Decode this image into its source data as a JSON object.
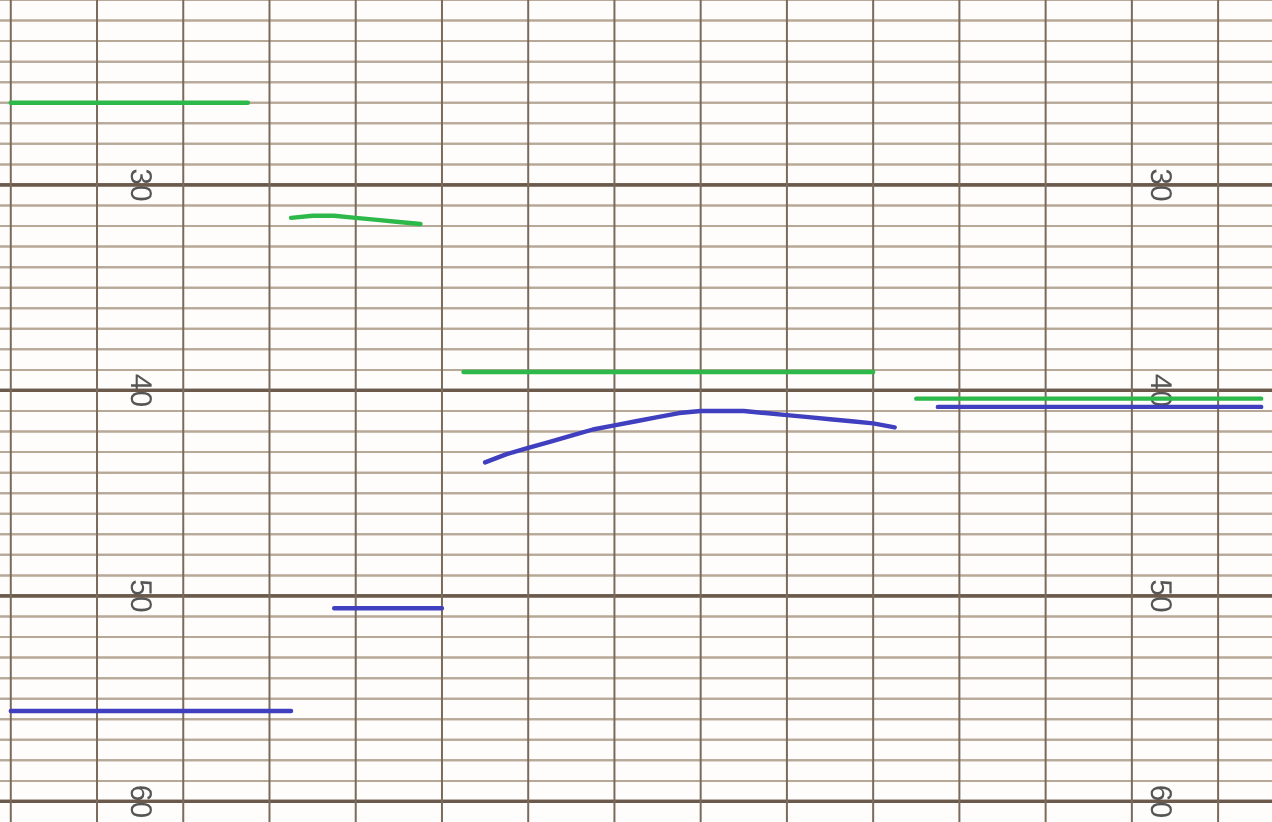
{
  "chart_data": {
    "type": "line",
    "categories": [
      null,
      null,
      null,
      null,
      null,
      null,
      null,
      null,
      null,
      null,
      null,
      null,
      null,
      null,
      null,
      null,
      null,
      null,
      null,
      null,
      null,
      null,
      null,
      null,
      null,
      null,
      null,
      null,
      null,
      null,
      null,
      null,
      null,
      null,
      null,
      null,
      null,
      null,
      null,
      null,
      null,
      null,
      null,
      null,
      null,
      null,
      null,
      null,
      null,
      null,
      null,
      null,
      null,
      null,
      null,
      null,
      null,
      null,
      null
    ],
    "series": [
      {
        "color": "#2db84a",
        "values": [
          26.0,
          26.0,
          26.0,
          26.0,
          26.0,
          26.0,
          26.0,
          26.0,
          26.0,
          26.0,
          26.0,
          26.0,
          null,
          31.6,
          31.5,
          31.5,
          31.6,
          31.7,
          31.8,
          31.9,
          null,
          39.1,
          39.1,
          39.1,
          39.1,
          39.1,
          39.1,
          39.1,
          39.1,
          39.1,
          39.1,
          39.1,
          39.1,
          39.1,
          39.1,
          39.1,
          39.1,
          39.1,
          39.1,
          39.1,
          39.1,
          null,
          40.4,
          40.4,
          40.4,
          40.4,
          40.4,
          40.4,
          40.4,
          40.4,
          40.4,
          40.4,
          40.4,
          40.4,
          40.4,
          40.4,
          40.4,
          40.4,
          40.4
        ]
      },
      {
        "color": "#3f3fbf",
        "values": [
          55.6,
          55.6,
          55.6,
          55.6,
          55.6,
          55.6,
          55.6,
          55.6,
          55.6,
          55.6,
          55.6,
          55.6,
          55.6,
          55.6,
          null,
          50.6,
          50.6,
          50.6,
          50.6,
          50.6,
          50.6,
          null,
          43.5,
          43.1,
          42.8,
          42.5,
          42.2,
          41.9,
          41.7,
          41.5,
          41.3,
          41.1,
          41.0,
          41.0,
          41.0,
          41.1,
          41.2,
          41.3,
          41.4,
          41.5,
          41.6,
          41.8,
          null,
          40.8,
          40.8,
          40.8,
          40.8,
          40.8,
          40.8,
          40.8,
          40.8,
          40.8,
          40.8,
          40.8,
          40.8,
          40.8,
          40.8,
          40.8,
          40.8
        ]
      }
    ],
    "ylim": [
      61,
      21
    ],
    "yticks": [
      {
        "value": 21,
        "label": null
      },
      {
        "value": 22,
        "label": null
      },
      {
        "value": 23,
        "label": null
      },
      {
        "value": 24,
        "label": null
      },
      {
        "value": 25,
        "label": null
      },
      {
        "value": 26,
        "label": null
      },
      {
        "value": 27,
        "label": null
      },
      {
        "value": 28,
        "label": null
      },
      {
        "value": 29,
        "label": null
      },
      30,
      {
        "value": 31,
        "label": null
      },
      {
        "value": 32,
        "label": null
      },
      {
        "value": 33,
        "label": null
      },
      {
        "value": 34,
        "label": null
      },
      {
        "value": 35,
        "label": null
      },
      {
        "value": 36,
        "label": null
      },
      {
        "value": 37,
        "label": null
      },
      {
        "value": 38,
        "label": null
      },
      {
        "value": 39,
        "label": null
      },
      40,
      {
        "value": 41,
        "label": null
      },
      {
        "value": 42,
        "label": null
      },
      {
        "value": 43,
        "label": null
      },
      {
        "value": 44,
        "label": null
      },
      {
        "value": 45,
        "label": null
      },
      {
        "value": 46,
        "label": null
      },
      {
        "value": 47,
        "label": null
      },
      {
        "value": 48,
        "label": null
      },
      {
        "value": 49,
        "label": null
      },
      50,
      {
        "value": 51,
        "label": null
      },
      {
        "value": 52,
        "label": null
      },
      {
        "value": 53,
        "label": null
      },
      {
        "value": 54,
        "label": null
      },
      {
        "value": 55,
        "label": null
      },
      {
        "value": 56,
        "label": null
      },
      {
        "value": 57,
        "label": null
      },
      {
        "value": 58,
        "label": null
      },
      {
        "value": 59,
        "label": null
      },
      60
    ],
    "y2lim": [
      61,
      21
    ],
    "y2ticks": [
      {
        "value": 21,
        "label": null
      },
      {
        "value": 22,
        "label": null
      },
      {
        "value": 23,
        "label": null
      },
      {
        "value": 24,
        "label": null
      },
      {
        "value": 25,
        "label": null
      },
      {
        "value": 26,
        "label": null
      },
      {
        "value": 27,
        "label": null
      },
      {
        "value": 28,
        "label": null
      },
      {
        "value": 29,
        "label": null
      },
      30,
      {
        "value": 31,
        "label": null
      },
      {
        "value": 32,
        "label": null
      },
      {
        "value": 33,
        "label": null
      },
      {
        "value": 34,
        "label": null
      },
      {
        "value": 35,
        "label": null
      },
      {
        "value": 36,
        "label": null
      },
      {
        "value": 37,
        "label": null
      },
      {
        "value": 38,
        "label": null
      },
      {
        "value": 39,
        "label": null
      },
      40,
      {
        "value": 41,
        "label": null
      },
      {
        "value": 42,
        "label": null
      },
      {
        "value": 43,
        "label": null
      },
      {
        "value": 44,
        "label": null
      },
      {
        "value": 45,
        "label": null
      },
      {
        "value": 46,
        "label": null
      },
      {
        "value": 47,
        "label": null
      },
      {
        "value": 48,
        "label": null
      },
      {
        "value": 49,
        "label": null
      },
      50,
      {
        "value": 51,
        "label": null
      },
      {
        "value": 52,
        "label": null
      },
      {
        "value": 53,
        "label": null
      },
      {
        "value": 54,
        "label": null
      },
      {
        "value": 55,
        "label": null
      },
      {
        "value": 56,
        "label": null
      },
      {
        "value": 57,
        "label": null
      },
      {
        "value": 58,
        "label": null
      },
      {
        "value": 59,
        "label": null
      },
      60
    ],
    "grid": true,
    "marker": "none",
    "line_style": "solid"
  }
}
